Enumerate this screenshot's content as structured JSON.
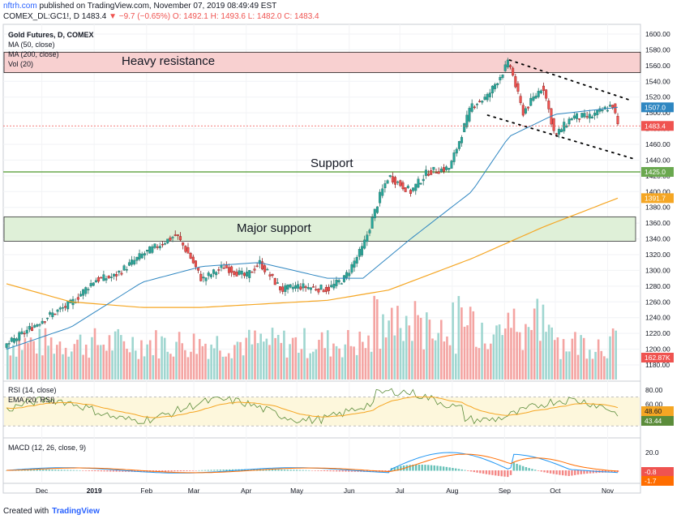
{
  "header": {
    "site": "nftrh.com",
    "published": " published on TradingView.com, November 07, 2019 08:49:49 EST",
    "symbol": "COMEX_DL:GC1!, D",
    "last": "1483.4",
    "change": "▼ −9.7 (−0.65%)",
    "ohlc": "O: 1492.1  H: 1493.6  L: 1482.0  C: 1483.4"
  },
  "legend": {
    "main_title": "Gold Futures, D, COMEX",
    "ma50": "MA (50, close)",
    "ma200": "MA (200, close)",
    "vol": "Vol (20)",
    "rsi": "RSI (14, close)",
    "ema": "EMA (20, RSI)",
    "macd": "MACD (12, 26, close, 9)"
  },
  "annotations": {
    "heavy_resistance": "Heavy resistance",
    "support": "Support",
    "major_support": "Major support"
  },
  "price_badges": {
    "ma50": "1507.0",
    "last": "1483.4",
    "support": "1425.0",
    "ma200": "1391.7",
    "volume": "162.87K",
    "rsi_ema": "48.60",
    "rsi": "43.44",
    "macd1": "-0.8",
    "macd2": "-1.7"
  },
  "footer": {
    "created": "Created with",
    "brand": "TradingView"
  },
  "colors": {
    "up": "#26a69a",
    "down": "#ef5350",
    "ma50": "#2e86c1",
    "ma200": "#f5a623",
    "support_line": "#6aa84f",
    "resistance_fill": "#f8d0d0",
    "support_fill": "#dff0d8"
  },
  "chart_data": {
    "type": "candlestick",
    "title": "Gold Futures, D, COMEX",
    "x_ticks": [
      "Dec",
      "2019",
      "Feb",
      "Mar",
      "Apr",
      "May",
      "Jun",
      "Jul",
      "Aug",
      "Sep",
      "Oct",
      "Nov"
    ],
    "y_ticks": [
      1180,
      1200,
      1220,
      1240,
      1260,
      1280,
      1300,
      1320,
      1340,
      1360,
      1380,
      1400,
      1420,
      1440,
      1460,
      1480,
      1500,
      1520,
      1540,
      1560,
      1580,
      1600
    ],
    "ylim": [
      1170,
      1610
    ],
    "price_path": [
      [
        "2018-11-12",
        1205
      ],
      [
        "2018-11-23",
        1222
      ],
      [
        "2018-12-05",
        1240
      ],
      [
        "2018-12-20",
        1258
      ],
      [
        "2019-01-03",
        1288
      ],
      [
        "2019-01-14",
        1292
      ],
      [
        "2019-01-31",
        1320
      ],
      [
        "2019-02-20",
        1345
      ],
      [
        "2019-02-28",
        1318
      ],
      [
        "2019-03-07",
        1288
      ],
      [
        "2019-03-20",
        1305
      ],
      [
        "2019-04-02",
        1292
      ],
      [
        "2019-04-10",
        1310
      ],
      [
        "2019-04-23",
        1275
      ],
      [
        "2019-05-02",
        1280
      ],
      [
        "2019-05-20",
        1276
      ],
      [
        "2019-05-30",
        1290
      ],
      [
        "2019-06-10",
        1330
      ],
      [
        "2019-06-20",
        1395
      ],
      [
        "2019-06-25",
        1420
      ],
      [
        "2019-07-08",
        1400
      ],
      [
        "2019-07-18",
        1425
      ],
      [
        "2019-07-31",
        1430
      ],
      [
        "2019-08-13",
        1510
      ],
      [
        "2019-08-22",
        1520
      ],
      [
        "2019-09-04",
        1565
      ],
      [
        "2019-09-12",
        1500
      ],
      [
        "2019-09-24",
        1535
      ],
      [
        "2019-10-01",
        1470
      ],
      [
        "2019-10-11",
        1495
      ],
      [
        "2019-10-22",
        1495
      ],
      [
        "2019-11-04",
        1510
      ],
      [
        "2019-11-07",
        1483.4
      ]
    ],
    "ma50_path": [
      [
        "2018-11-12",
        1200
      ],
      [
        "2018-12-20",
        1228
      ],
      [
        "2019-01-31",
        1285
      ],
      [
        "2019-03-07",
        1305
      ],
      [
        "2019-04-10",
        1310
      ],
      [
        "2019-05-20",
        1290
      ],
      [
        "2019-06-10",
        1290
      ],
      [
        "2019-07-08",
        1340
      ],
      [
        "2019-08-13",
        1400
      ],
      [
        "2019-09-04",
        1470
      ],
      [
        "2019-10-01",
        1498
      ],
      [
        "2019-11-07",
        1507
      ]
    ],
    "ma200_path": [
      [
        "2018-11-12",
        1283
      ],
      [
        "2018-12-20",
        1260
      ],
      [
        "2019-01-31",
        1253
      ],
      [
        "2019-03-07",
        1253
      ],
      [
        "2019-05-20",
        1262
      ],
      [
        "2019-06-25",
        1275
      ],
      [
        "2019-08-13",
        1315
      ],
      [
        "2019-09-24",
        1355
      ],
      [
        "2019-11-07",
        1391.7
      ]
    ],
    "zones": [
      {
        "label": "Heavy resistance",
        "low": 1551,
        "high": 1577
      },
      {
        "label": "Major support",
        "low": 1337,
        "high": 1368
      }
    ],
    "support_level": 1425.0,
    "channel_upper": [
      [
        "2019-09-04",
        1567
      ],
      [
        "2019-11-07",
        1510
      ]
    ],
    "channel_lower": [
      [
        "2019-08-22",
        1497
      ],
      [
        "2019-11-07",
        1437
      ]
    ],
    "rsi": {
      "ticks": [
        40,
        60,
        80
      ],
      "last": 43.44,
      "ema_last": 48.6
    },
    "macd": {
      "ticks": [
        0,
        20
      ],
      "last": -0.8,
      "signal_last": -1.7
    }
  }
}
